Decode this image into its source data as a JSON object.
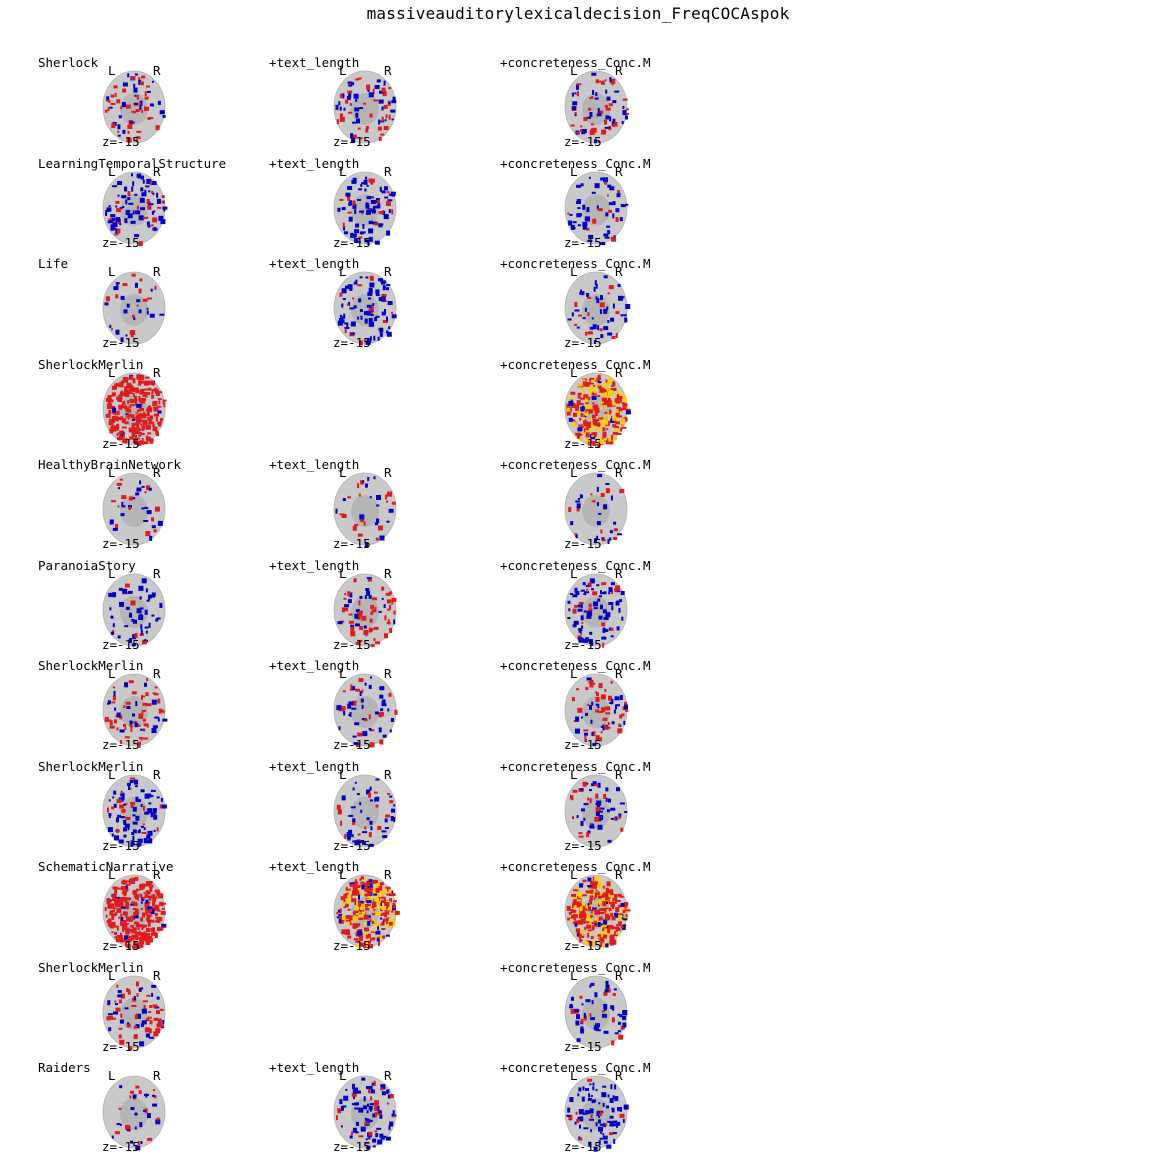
{
  "title": "massiveauditorylexicaldecision_FreqCOCAspok",
  "slice_label": "z=-15",
  "orientation": {
    "left": "L",
    "right": "R"
  },
  "colors": {
    "positive": "#e31a1c",
    "positive_hot": "#ffcc00",
    "negative": "#0000cc",
    "brain": "#c9c9c9"
  },
  "rows": [
    {
      "cells": [
        {
          "label": "Sherlock",
          "pattern": "mixed"
        },
        {
          "label": "+text_length",
          "pattern": "mixed"
        },
        {
          "label": "+concreteness_Conc.M",
          "pattern": "mixed"
        }
      ]
    },
    {
      "cells": [
        {
          "label": "LearningTemporalStructure",
          "pattern": "neg"
        },
        {
          "label": "+text_length",
          "pattern": "neg"
        },
        {
          "label": "+concreteness_Conc.M",
          "pattern": "negsparse"
        }
      ]
    },
    {
      "cells": [
        {
          "label": "Life",
          "pattern": "sparse"
        },
        {
          "label": "+text_length",
          "pattern": "neg"
        },
        {
          "label": "+concreteness_Conc.M",
          "pattern": "negsparse"
        }
      ]
    },
    {
      "cells": [
        {
          "label": "SherlockMerlin",
          "pattern": "pos"
        },
        null,
        {
          "label": "+concreteness_Conc.M",
          "pattern": "hot"
        }
      ]
    },
    {
      "cells": [
        {
          "label": "HealthyBrainNetwork",
          "pattern": "sparse"
        },
        {
          "label": "+text_length",
          "pattern": "sparse"
        },
        {
          "label": "+concreteness_Conc.M",
          "pattern": "sparse"
        }
      ]
    },
    {
      "cells": [
        {
          "label": "ParanoiaStory",
          "pattern": "negsparse"
        },
        {
          "label": "+text_length",
          "pattern": "mixed"
        },
        {
          "label": "+concreteness_Conc.M",
          "pattern": "neg"
        }
      ]
    },
    {
      "cells": [
        {
          "label": "SherlockMerlin",
          "pattern": "mixed"
        },
        {
          "label": "+text_length",
          "pattern": "negsparse"
        },
        {
          "label": "+concreteness_Conc.M",
          "pattern": "mixed"
        }
      ]
    },
    {
      "cells": [
        {
          "label": "SherlockMerlin",
          "pattern": "neg"
        },
        {
          "label": "+text_length",
          "pattern": "negsparse"
        },
        {
          "label": "+concreteness_Conc.M",
          "pattern": "negsparse"
        }
      ]
    },
    {
      "cells": [
        {
          "label": "SchematicNarrative",
          "pattern": "pos"
        },
        {
          "label": "+text_length",
          "pattern": "hot"
        },
        {
          "label": "+concreteness_Conc.M",
          "pattern": "hot"
        }
      ]
    },
    {
      "cells": [
        {
          "label": "SherlockMerlin",
          "pattern": "mixed"
        },
        null,
        {
          "label": "+concreteness_Conc.M",
          "pattern": "negsparse"
        }
      ]
    },
    {
      "cells": [
        {
          "label": "Raiders",
          "pattern": "sparse"
        },
        {
          "label": "+text_length",
          "pattern": "neg"
        },
        {
          "label": "+concreteness_Conc.M",
          "pattern": "neg"
        }
      ]
    }
  ]
}
